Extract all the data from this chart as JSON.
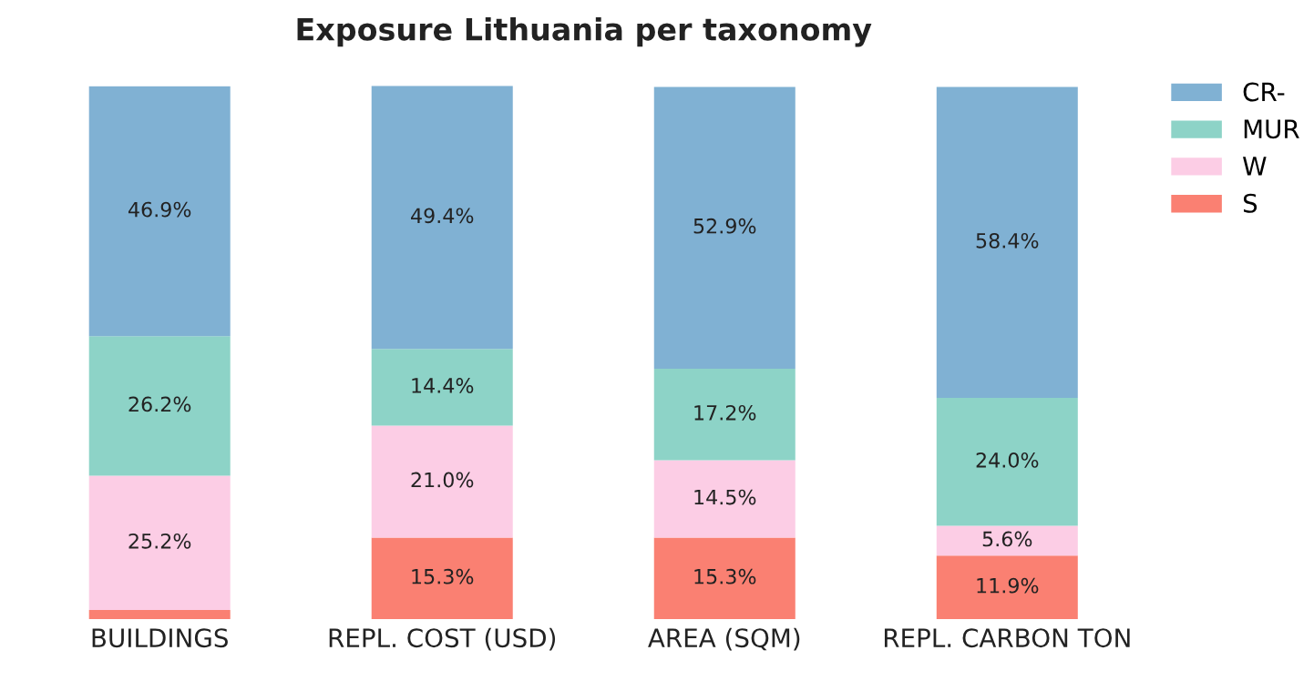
{
  "chart_data": {
    "type": "bar",
    "title": "Exposure Lithuania per taxonomy",
    "stacked": true,
    "categories": [
      "BUILDINGS",
      "REPL. COST (USD)",
      "AREA (SQM)",
      "REPL. CARBON TON"
    ],
    "series": [
      {
        "name": "S",
        "color": "#fa8072",
        "values": [
          1.7,
          15.3,
          15.3,
          11.9
        ],
        "value_labels": [
          null,
          "15.3%",
          "15.3%",
          "11.9%"
        ]
      },
      {
        "name": "W",
        "color": "#fccde5",
        "values": [
          25.2,
          21.0,
          14.5,
          5.6
        ],
        "value_labels": [
          "25.2%",
          "21.0%",
          "14.5%",
          "5.6%"
        ]
      },
      {
        "name": "MUR",
        "color": "#8dd3c7",
        "values": [
          26.2,
          14.4,
          17.2,
          24.0
        ],
        "value_labels": [
          "26.2%",
          "14.4%",
          "17.2%",
          "24.0%"
        ]
      },
      {
        "name": "CR-",
        "color": "#80b1d3",
        "values": [
          46.9,
          49.4,
          52.9,
          58.4
        ],
        "value_labels": [
          "46.9%",
          "49.4%",
          "52.9%",
          "58.4%"
        ]
      }
    ],
    "legend": "top right",
    "grid": false,
    "tick_labels": "x"
  }
}
